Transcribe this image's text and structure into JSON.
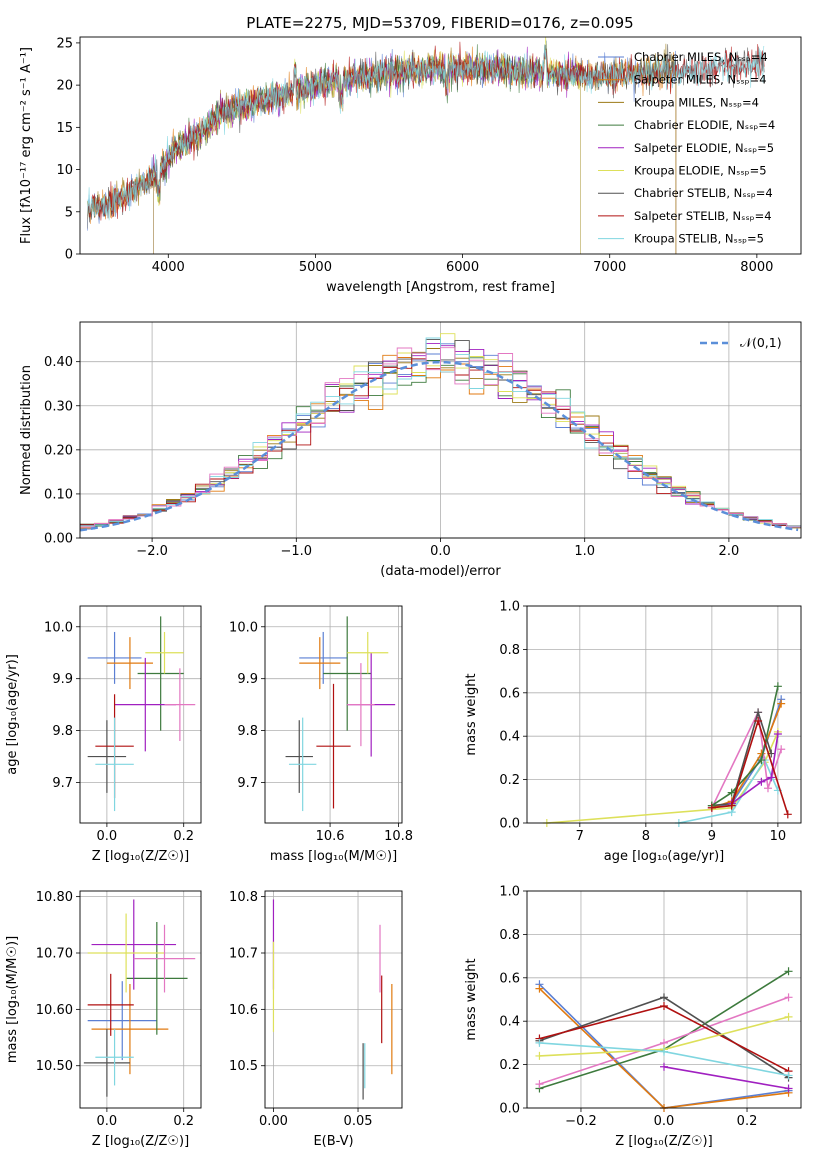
{
  "figure": {
    "title": "PLATE=2275, MJD=53709, FIBERID=0176, z=0.095"
  },
  "chart_data": [
    {
      "id": "spectrum",
      "type": "line",
      "title": "PLATE=2275, MJD=53709, FIBERID=0176, z=0.095",
      "xlabel": "wavelength [Angstrom, rest frame]",
      "ylabel": "Flux [fλ10⁻¹⁷ erg cm⁻² s⁻¹ A⁻¹]",
      "xlim": [
        3400,
        8300
      ],
      "ylim": [
        0,
        25.7
      ],
      "xticks": [
        4000,
        5000,
        6000,
        7000,
        8000
      ],
      "yticks": [
        0,
        5,
        10,
        15,
        20,
        25
      ],
      "grid": false,
      "legend_position": "right",
      "continuum": {
        "x": [
          3450,
          3600,
          3700,
          3850,
          3950,
          4050,
          4200,
          4350,
          4500,
          4700,
          4900,
          5100,
          5300,
          5500,
          5700,
          5900,
          6100,
          6300,
          6500,
          6700,
          6900,
          7100,
          7300,
          7500,
          7700,
          7900,
          8050
        ],
        "y": [
          5.5,
          6.0,
          7.0,
          8.5,
          10.0,
          12.5,
          14.0,
          16.5,
          17.5,
          18.5,
          19.5,
          20.5,
          21.0,
          21.5,
          21.8,
          22.0,
          22.0,
          21.8,
          21.6,
          21.3,
          21.0,
          21.3,
          21.6,
          21.8,
          22.0,
          22.3,
          22.7
        ]
      },
      "series": [
        {
          "name": "Chabrier MILES, N_SSP=4",
          "color": "#5b7fd3",
          "x_range": [
            3450,
            7450
          ]
        },
        {
          "name": "Salpeter MILES, N_SSP=4",
          "color": "#e07a10",
          "x_range": [
            3450,
            7450
          ]
        },
        {
          "name": "Kroupa MILES, N_SSP=4",
          "color": "#9c7a16",
          "x_range": [
            3450,
            7450
          ]
        },
        {
          "name": "Chabrier ELODIE, N_SSP=4",
          "color": "#3d7a3d",
          "x_range": [
            3900,
            6800
          ]
        },
        {
          "name": "Salpeter ELODIE, N_SSP=5",
          "color": "#a020c0",
          "x_range": [
            3900,
            6800
          ]
        },
        {
          "name": "Kroupa ELODIE, N_SSP=5",
          "color": "#dde05a",
          "x_range": [
            3900,
            6800
          ]
        },
        {
          "name": "Chabrier STELIB, N_SSP=4",
          "color": "#505050",
          "x_range": [
            3450,
            8050
          ]
        },
        {
          "name": "Salpeter STELIB, N_SSP=4",
          "color": "#b01010",
          "x_range": [
            3450,
            8050
          ]
        },
        {
          "name": "Kroupa STELIB, N_SSP=5",
          "color": "#80d6e0",
          "x_range": [
            3450,
            8050
          ]
        }
      ]
    },
    {
      "id": "residuals",
      "type": "area",
      "xlabel": "(data-model)/error",
      "ylabel": "Normed distribution",
      "xlim": [
        -2.5,
        2.5
      ],
      "ylim": [
        0,
        0.49
      ],
      "xticks": [
        -2,
        -1,
        0,
        1,
        2
      ],
      "yticks": [
        0.0,
        0.1,
        0.2,
        0.3,
        0.4
      ],
      "grid": true,
      "bin_width": 0.1,
      "legend": {
        "label": "𝒩(0,1)",
        "position": "top-right",
        "color": "#5b8fd9"
      }
    },
    {
      "id": "age-vs-Z",
      "type": "scatter",
      "xlabel": "Z [log₁₀(Z/Z☉)]",
      "ylabel": "age  [log₁₀(age/yr)]",
      "xlim": [
        -0.07,
        0.245
      ],
      "ylim": [
        9.622,
        10.04
      ],
      "xticks": [
        0.0,
        0.2
      ],
      "yticks": [
        9.7,
        9.8,
        9.9,
        10.0
      ],
      "grid": true,
      "points": [
        {
          "model": "Chabrier MILES",
          "color": "#5b7fd3",
          "x": 0.02,
          "xerr": 0.07,
          "y": 9.94,
          "yerr": 0.05
        },
        {
          "model": "Salpeter MILES",
          "color": "#e07a10",
          "x": 0.06,
          "xerr": 0.06,
          "y": 9.93,
          "yerr": 0.05
        },
        {
          "model": "Chabrier ELODIE",
          "color": "#3d7a3d",
          "x": 0.14,
          "xerr": 0.06,
          "y": 9.91,
          "yerr": 0.11
        },
        {
          "model": "Salpeter ELODIE",
          "color": "#a020c0",
          "x": 0.1,
          "xerr": 0.08,
          "y": 9.85,
          "yerr": 0.09
        },
        {
          "model": "Kroupa ELODIE",
          "color": "#dde05a",
          "x": 0.15,
          "xerr": 0.05,
          "y": 9.95,
          "yerr": 0.04
        },
        {
          "model": "Kroupa MILES",
          "color": "#e377c2",
          "x": 0.19,
          "xerr": 0.04,
          "y": 9.85,
          "yerr": 0.07
        },
        {
          "model": "Chabrier STELIB",
          "color": "#505050",
          "x": 0.0,
          "xerr": 0.05,
          "y": 9.75,
          "yerr": 0.07
        },
        {
          "model": "Salpeter STELIB",
          "color": "#b01010",
          "x": 0.02,
          "xerr": 0.05,
          "y": 9.77,
          "yerr": 0.1
        },
        {
          "model": "Kroupa STELIB",
          "color": "#80d6e0",
          "x": 0.02,
          "xerr": 0.05,
          "y": 9.735,
          "yerr": 0.09
        }
      ]
    },
    {
      "id": "age-vs-mass",
      "type": "scatter",
      "xlabel": "mass [log₁₀(M/M☉)]",
      "ylabel": "",
      "xlim": [
        10.41,
        10.81
      ],
      "ylim": [
        9.622,
        10.04
      ],
      "xticks": [
        10.6,
        10.8
      ],
      "yticks": [
        9.7,
        9.8,
        9.9,
        10.0
      ],
      "grid": true,
      "points": [
        {
          "color": "#5b7fd3",
          "x": 10.58,
          "xerr": 0.07,
          "y": 9.94,
          "yerr": 0.05
        },
        {
          "color": "#e07a10",
          "x": 10.57,
          "xerr": 0.06,
          "y": 9.93,
          "yerr": 0.05
        },
        {
          "color": "#3d7a3d",
          "x": 10.65,
          "xerr": 0.07,
          "y": 9.91,
          "yerr": 0.11
        },
        {
          "color": "#a020c0",
          "x": 10.72,
          "xerr": 0.07,
          "y": 9.85,
          "yerr": 0.1
        },
        {
          "color": "#dde05a",
          "x": 10.71,
          "xerr": 0.06,
          "y": 9.95,
          "yerr": 0.04
        },
        {
          "color": "#e377c2",
          "x": 10.69,
          "xerr": 0.04,
          "y": 9.85,
          "yerr": 0.08
        },
        {
          "color": "#505050",
          "x": 10.51,
          "xerr": 0.04,
          "y": 9.75,
          "yerr": 0.07
        },
        {
          "color": "#b01010",
          "x": 10.61,
          "xerr": 0.05,
          "y": 9.77,
          "yerr": 0.12
        },
        {
          "color": "#80d6e0",
          "x": 10.52,
          "xerr": 0.04,
          "y": 9.735,
          "yerr": 0.09
        }
      ]
    },
    {
      "id": "weight-vs-age",
      "type": "line",
      "xlabel": "age  [log₁₀(age/yr)]",
      "ylabel": "mass weight",
      "xlim": [
        6.2,
        10.35
      ],
      "ylim": [
        0.0,
        1.0
      ],
      "xticks": [
        7,
        8,
        9,
        10
      ],
      "yticks": [
        0.0,
        0.2,
        0.4,
        0.6,
        0.8,
        1.0
      ],
      "grid": true,
      "series": [
        {
          "color": "#dde05a",
          "x": [
            6.5,
            9.3,
            9.8,
            10.0
          ],
          "y": [
            0.0,
            0.07,
            0.28,
            0.42
          ]
        },
        {
          "color": "#80d6e0",
          "x": [
            8.5,
            9.3,
            9.8,
            10.0
          ],
          "y": [
            0.0,
            0.05,
            0.29,
            0.15
          ]
        },
        {
          "color": "#5b7fd3",
          "x": [
            9.0,
            9.3,
            9.75,
            10.05
          ],
          "y": [
            0.07,
            0.09,
            0.3,
            0.57
          ]
        },
        {
          "color": "#e07a10",
          "x": [
            9.0,
            9.3,
            9.75,
            10.05
          ],
          "y": [
            0.07,
            0.1,
            0.32,
            0.55
          ]
        },
        {
          "color": "#e377c2",
          "x": [
            9.0,
            9.7,
            9.85,
            10.05
          ],
          "y": [
            0.07,
            0.51,
            0.16,
            0.34
          ]
        },
        {
          "color": "#505050",
          "x": [
            9.0,
            9.3,
            9.7,
            9.9
          ],
          "y": [
            0.08,
            0.09,
            0.51,
            0.32
          ]
        },
        {
          "color": "#3d7a3d",
          "x": [
            9.0,
            9.3,
            9.75,
            10.0
          ],
          "y": [
            0.08,
            0.14,
            0.29,
            0.63
          ]
        },
        {
          "color": "#a020c0",
          "x": [
            9.3,
            9.75,
            9.9,
            10.0
          ],
          "y": [
            0.09,
            0.19,
            0.21,
            0.41
          ]
        },
        {
          "color": "#b01010",
          "x": [
            9.0,
            9.3,
            9.7,
            10.15
          ],
          "y": [
            0.07,
            0.08,
            0.47,
            0.04
          ]
        }
      ]
    },
    {
      "id": "mass-vs-Z",
      "type": "scatter",
      "xlabel": "Z [log₁₀(Z/Z☉)]",
      "ylabel": "mass [log₁₀(M/M☉)]",
      "xlim": [
        -0.07,
        0.245
      ],
      "ylim": [
        10.425,
        10.81
      ],
      "xticks": [
        0.0,
        0.2
      ],
      "yticks": [
        10.5,
        10.6,
        10.7,
        10.8
      ],
      "grid": true,
      "points": [
        {
          "color": "#5b7fd3",
          "x": 0.04,
          "xerr": 0.09,
          "y": 10.58,
          "yerr": 0.07
        },
        {
          "color": "#e07a10",
          "x": 0.06,
          "xerr": 0.1,
          "y": 10.565,
          "yerr": 0.08
        },
        {
          "color": "#3d7a3d",
          "x": 0.13,
          "xerr": 0.08,
          "y": 10.655,
          "yerr": 0.1
        },
        {
          "color": "#a020c0",
          "x": 0.07,
          "xerr": 0.11,
          "y": 10.715,
          "yerr": 0.08
        },
        {
          "color": "#dde05a",
          "x": 0.05,
          "xerr": 0.1,
          "y": 10.7,
          "yerr": 0.07
        },
        {
          "color": "#e377c2",
          "x": 0.15,
          "xerr": 0.08,
          "y": 10.69,
          "yerr": 0.06
        },
        {
          "color": "#505050",
          "x": 0.0,
          "xerr": 0.06,
          "y": 10.505,
          "yerr": 0.06
        },
        {
          "color": "#b01010",
          "x": 0.01,
          "xerr": 0.06,
          "y": 10.608,
          "yerr": 0.055
        },
        {
          "color": "#80d6e0",
          "x": 0.02,
          "xerr": 0.05,
          "y": 10.515,
          "yerr": 0.05
        }
      ]
    },
    {
      "id": "mass-vs-ebv",
      "type": "scatter",
      "xlabel": "E(B-V)",
      "ylabel": "",
      "xlim": [
        -0.005,
        0.076
      ],
      "ylim": [
        10.425,
        10.81
      ],
      "xticks": [
        0.0,
        0.05
      ],
      "yticks": [
        10.5,
        10.6,
        10.7,
        10.8
      ],
      "grid": true,
      "points": [
        {
          "color": "#a020c0",
          "x": 0.0,
          "y": 10.715,
          "yerr": 0.08
        },
        {
          "color": "#dde05a",
          "x": 0.0,
          "y": 10.64,
          "yerr": 0.08
        },
        {
          "color": "#505050",
          "x": 0.053,
          "y": 10.49,
          "yerr": 0.05
        },
        {
          "color": "#80d6e0",
          "x": 0.054,
          "y": 10.5,
          "yerr": 0.04
        },
        {
          "color": "#e377c2",
          "x": 0.063,
          "y": 10.69,
          "yerr": 0.06
        },
        {
          "color": "#b01010",
          "x": 0.064,
          "y": 10.6,
          "yerr": 0.06
        },
        {
          "color": "#e07a10",
          "x": 0.07,
          "y": 10.565,
          "yerr": 0.08
        }
      ]
    },
    {
      "id": "weight-vs-Z",
      "type": "line",
      "xlabel": "Z [log₁₀(Z/Z☉)]",
      "ylabel": "mass weight",
      "xlim": [
        -0.33,
        0.33
      ],
      "ylim": [
        0.0,
        1.0
      ],
      "xticks": [
        -0.2,
        0.0,
        0.2
      ],
      "yticks": [
        0.0,
        0.2,
        0.4,
        0.6,
        0.8,
        1.0
      ],
      "grid": true,
      "series": [
        {
          "color": "#5b7fd3",
          "x": [
            -0.3,
            0.0,
            0.3
          ],
          "y": [
            0.57,
            0.0,
            0.08
          ]
        },
        {
          "color": "#e07a10",
          "x": [
            -0.3,
            0.0,
            0.3
          ],
          "y": [
            0.55,
            0.0,
            0.07
          ]
        },
        {
          "color": "#3d7a3d",
          "x": [
            -0.3,
            0.0,
            0.3
          ],
          "y": [
            0.09,
            0.27,
            0.63
          ]
        },
        {
          "color": "#e377c2",
          "x": [
            -0.3,
            0.0,
            0.3
          ],
          "y": [
            0.11,
            0.3,
            0.51
          ]
        },
        {
          "color": "#505050",
          "x": [
            -0.3,
            0.0,
            0.3
          ],
          "y": [
            0.31,
            0.51,
            0.14
          ]
        },
        {
          "color": "#b01010",
          "x": [
            -0.3,
            0.0,
            0.3
          ],
          "y": [
            0.32,
            0.47,
            0.17
          ]
        },
        {
          "color": "#a020c0",
          "x": [
            0.0,
            0.3
          ],
          "y": [
            0.19,
            0.09
          ]
        },
        {
          "color": "#dde05a",
          "x": [
            -0.3,
            0.0,
            0.3
          ],
          "y": [
            0.24,
            0.27,
            0.42
          ]
        },
        {
          "color": "#80d6e0",
          "x": [
            -0.3,
            0.0,
            0.3
          ],
          "y": [
            0.3,
            0.26,
            0.15
          ]
        }
      ]
    }
  ]
}
